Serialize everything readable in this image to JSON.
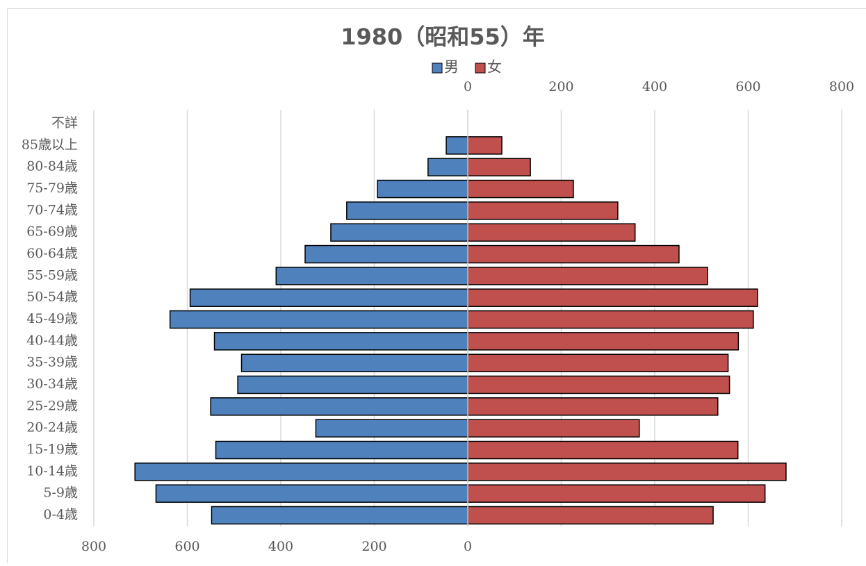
{
  "chart_data": {
    "type": "pyramid",
    "title": "1980（昭和55）年",
    "categories": [
      "0-4歳",
      "5-9歳",
      "10-14歳",
      "15-19歳",
      "20-24歳",
      "25-29歳",
      "30-34歳",
      "35-39歳",
      "40-44歳",
      "45-49歳",
      "50-54歳",
      "55-59歳",
      "60-64歳",
      "65-69歳",
      "70-74歳",
      "75-79歳",
      "80-84歳",
      "85歳以上",
      "不詳"
    ],
    "series": [
      {
        "name": "男",
        "color": "#4f81bd",
        "axis": "x",
        "values": [
          548,
          667,
          712,
          539,
          325,
          550,
          492,
          484,
          542,
          637,
          594,
          410,
          348,
          293,
          259,
          193,
          85,
          46,
          null
        ]
      },
      {
        "name": "女",
        "color": "#c0504d",
        "axis": "x2",
        "values": [
          525,
          636,
          681,
          578,
          367,
          535,
          560,
          557,
          579,
          611,
          620,
          513,
          452,
          358,
          321,
          226,
          134,
          73,
          null
        ]
      }
    ],
    "xlim": [
      0,
      800
    ],
    "xticks": [
      800,
      600,
      400,
      200,
      0
    ],
    "x2lim": [
      0,
      800
    ],
    "x2ticks": [
      0,
      200,
      400,
      600,
      800
    ],
    "grid": true
  }
}
